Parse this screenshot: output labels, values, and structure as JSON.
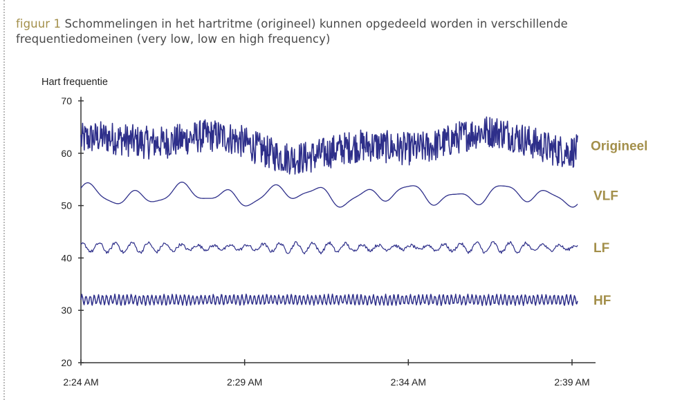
{
  "caption": {
    "label": "figuur 1",
    "text": "Schommelingen in het hartritme (origineel) kunnen opgedeeld worden in verschillende frequentiedomeinen (very low, low en high frequency)"
  },
  "colors": {
    "line": "#2e2f8a",
    "label": "#a38f4a",
    "caption_label": "#a38f4a",
    "axis": "#333333"
  },
  "chart_data": {
    "type": "line",
    "ylabel": "Hart frequentie",
    "xlabel": "",
    "ylim": [
      20,
      70
    ],
    "yticks": [
      20,
      30,
      40,
      50,
      60,
      70
    ],
    "xticks": [
      "2:24 AM",
      "2:29 AM",
      "2:34 AM",
      "2:39 AM"
    ],
    "xlim_minutes": [
      0,
      15
    ],
    "grid": false,
    "legend": "labels at right end of each series",
    "series": [
      {
        "name": "Origineel",
        "mean": 61.5,
        "amplitude": 3.5,
        "frequency": "mixed (slow + fast oscillations)"
      },
      {
        "name": "VLF",
        "mean": 52,
        "amplitude": 1.8,
        "frequency": "very low"
      },
      {
        "name": "LF",
        "mean": 42,
        "amplitude": 1.2,
        "frequency": "low"
      },
      {
        "name": "HF",
        "mean": 32,
        "amplitude": 1.0,
        "frequency": "high"
      }
    ]
  }
}
